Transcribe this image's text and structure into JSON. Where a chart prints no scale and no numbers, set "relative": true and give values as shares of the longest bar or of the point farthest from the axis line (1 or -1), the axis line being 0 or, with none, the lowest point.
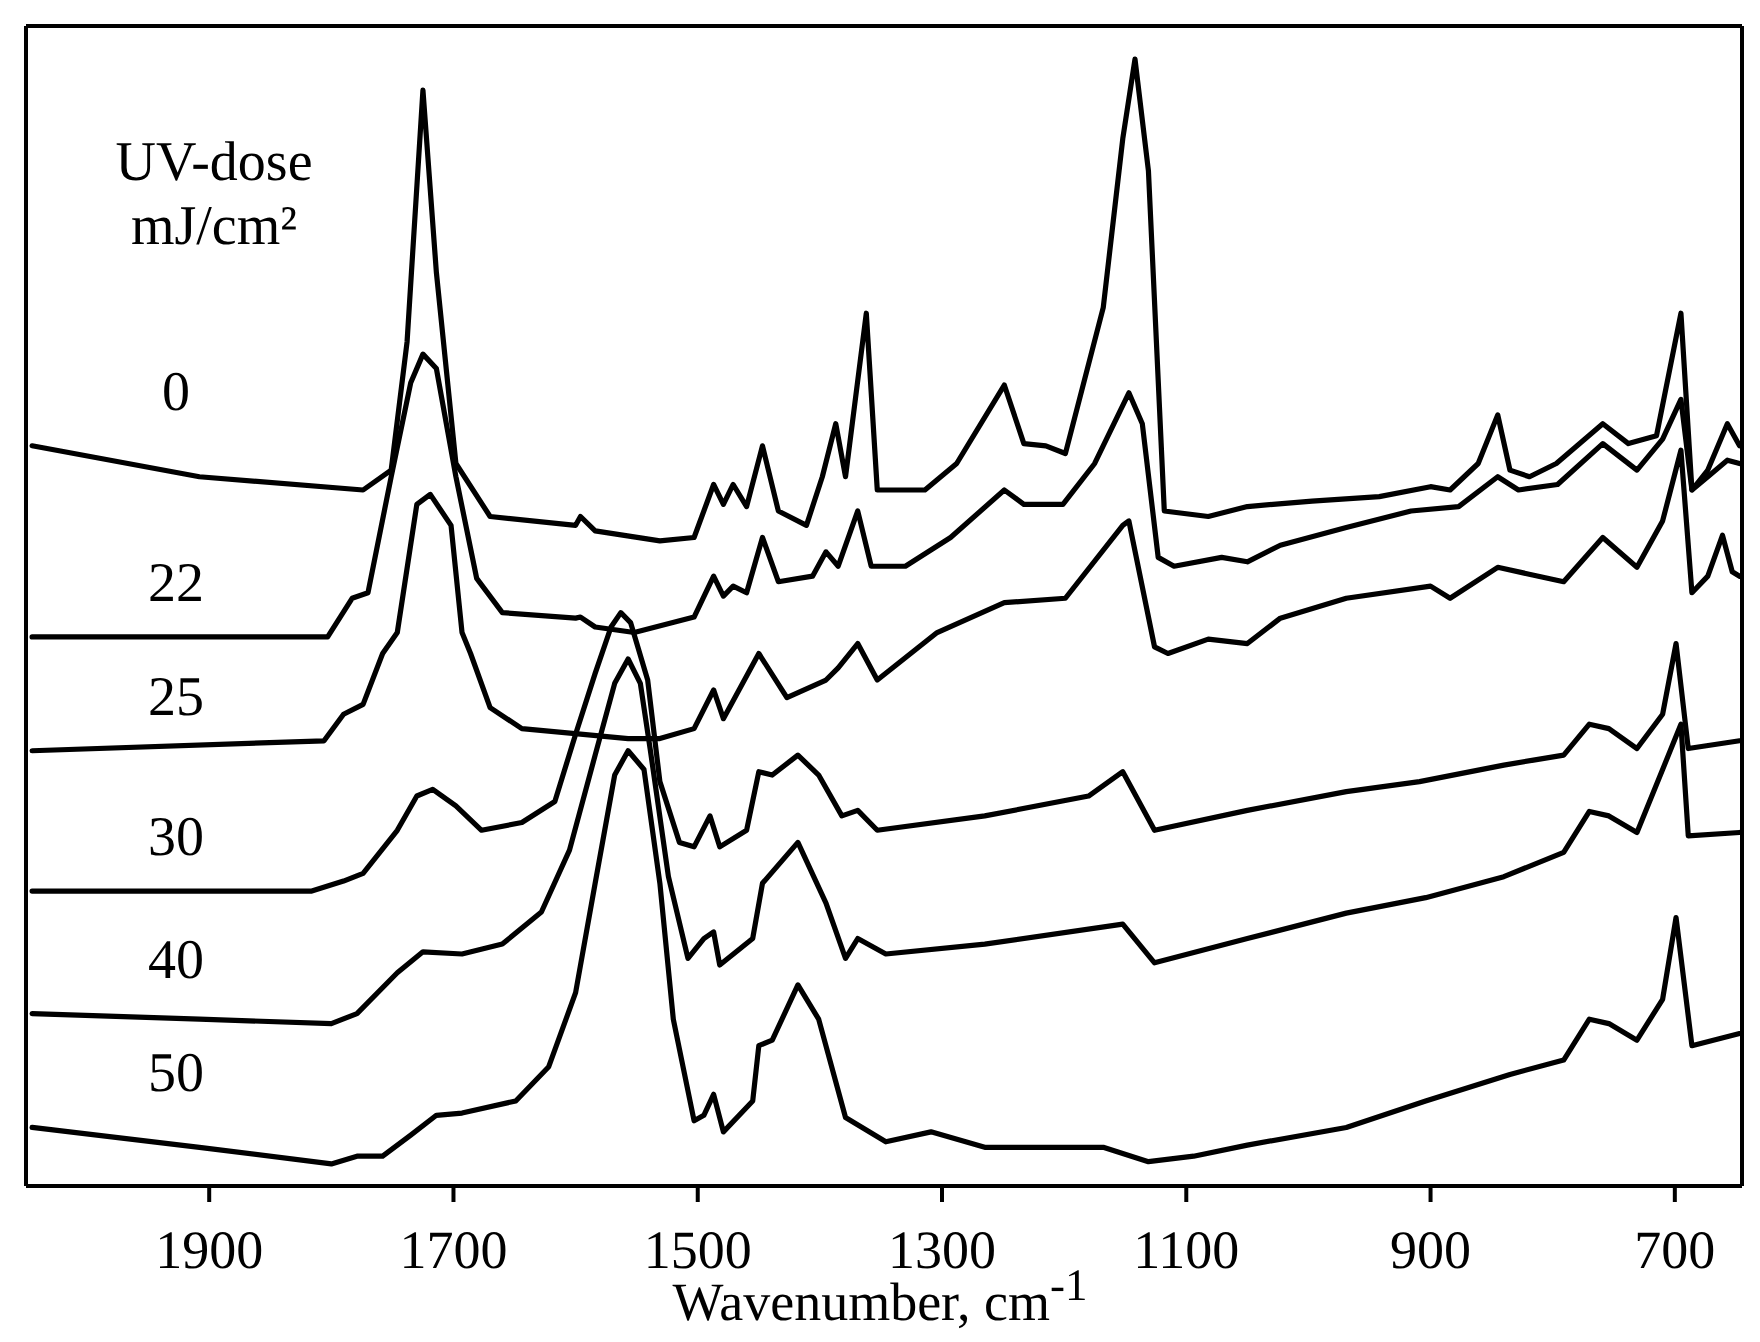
{
  "chart_data": {
    "type": "line",
    "relative": true,
    "xlabel": "Wavenumber, cm$^{-1}$",
    "legend_title": "UV-dose mJ/cm²",
    "legend": false,
    "marker": "none",
    "line_style": "solid",
    "xlim": [
      2050,
      645
    ],
    "xticks": [
      1900,
      1700,
      1500,
      1300,
      1100,
      900,
      700
    ],
    "series": [
      {
        "name": "0",
        "color": "#000000",
        "x": [
          2045,
          1908,
          1774,
          1751,
          1738,
          1725,
          1714,
          1698,
          1670,
          1600,
          1596,
          1584,
          1531,
          1503,
          1487,
          1479,
          1471,
          1460,
          1447,
          1434,
          1411,
          1398,
          1387,
          1379,
          1362,
          1353,
          1314,
          1288,
          1249,
          1233,
          1215,
          1199,
          1168,
          1152,
          1142,
          1131,
          1118,
          1082,
          1050,
          1029,
          997,
          942,
          900,
          884,
          861,
          845,
          835,
          819,
          797,
          759,
          738,
          715,
          695,
          686,
          673,
          657,
          647
        ],
        "values": [
          0.65,
          0.622,
          0.61,
          0.628,
          0.744,
          0.972,
          0.807,
          0.634,
          0.586,
          0.578,
          0.586,
          0.573,
          0.564,
          0.567,
          0.615,
          0.597,
          0.615,
          0.595,
          0.65,
          0.591,
          0.578,
          0.622,
          0.67,
          0.622,
          0.77,
          0.61,
          0.61,
          0.634,
          0.705,
          0.652,
          0.65,
          0.643,
          0.775,
          0.928,
          1.0,
          0.899,
          0.591,
          0.586,
          0.595,
          0.597,
          0.6,
          0.604,
          0.613,
          0.61,
          0.634,
          0.678,
          0.628,
          0.622,
          0.634,
          0.67,
          0.652,
          0.659,
          0.77,
          0.61,
          0.628,
          0.67,
          0.65
        ]
      },
      {
        "name": "22",
        "color": "#000000",
        "x": [
          2045,
          1803,
          1783,
          1770,
          1751,
          1735,
          1725,
          1714,
          1698,
          1681,
          1660,
          1600,
          1596,
          1584,
          1552,
          1503,
          1487,
          1479,
          1471,
          1460,
          1447,
          1434,
          1406,
          1395,
          1385,
          1369,
          1358,
          1330,
          1293,
          1249,
          1233,
          1201,
          1175,
          1147,
          1136,
          1123,
          1110,
          1071,
          1050,
          1023,
          969,
          916,
          877,
          845,
          828,
          796,
          759,
          731,
          710,
          695,
          686,
          673,
          657,
          647
        ],
        "values": [
          0.477,
          0.477,
          0.512,
          0.517,
          0.622,
          0.707,
          0.733,
          0.72,
          0.622,
          0.53,
          0.499,
          0.494,
          0.495,
          0.486,
          0.481,
          0.495,
          0.532,
          0.514,
          0.523,
          0.517,
          0.567,
          0.527,
          0.532,
          0.554,
          0.541,
          0.591,
          0.541,
          0.541,
          0.567,
          0.61,
          0.597,
          0.597,
          0.634,
          0.698,
          0.67,
          0.549,
          0.541,
          0.549,
          0.545,
          0.56,
          0.576,
          0.591,
          0.595,
          0.622,
          0.61,
          0.615,
          0.652,
          0.628,
          0.656,
          0.692,
          0.61,
          0.622,
          0.637,
          0.634
        ]
      },
      {
        "name": "25",
        "color": "#000000",
        "x": [
          2045,
          1806,
          1790,
          1774,
          1758,
          1746,
          1730,
          1719,
          1702,
          1693,
          1686,
          1670,
          1644,
          1596,
          1557,
          1531,
          1503,
          1487,
          1479,
          1450,
          1427,
          1395,
          1385,
          1369,
          1353,
          1304,
          1249,
          1199,
          1152,
          1147,
          1126,
          1115,
          1082,
          1050,
          1023,
          969,
          900,
          884,
          845,
          791,
          759,
          731,
          710,
          695,
          686,
          673,
          661,
          653,
          647
        ],
        "values": [
          0.374,
          0.383,
          0.407,
          0.416,
          0.462,
          0.481,
          0.597,
          0.606,
          0.578,
          0.481,
          0.462,
          0.413,
          0.394,
          0.389,
          0.385,
          0.385,
          0.394,
          0.429,
          0.403,
          0.462,
          0.422,
          0.438,
          0.449,
          0.471,
          0.438,
          0.481,
          0.508,
          0.512,
          0.578,
          0.582,
          0.468,
          0.462,
          0.475,
          0.471,
          0.494,
          0.512,
          0.523,
          0.512,
          0.54,
          0.527,
          0.567,
          0.54,
          0.582,
          0.646,
          0.517,
          0.532,
          0.569,
          0.536,
          0.532
        ]
      },
      {
        "name": "30",
        "color": "#000000",
        "x": [
          2045,
          1816,
          1790,
          1774,
          1746,
          1730,
          1717,
          1698,
          1677,
          1644,
          1617,
          1600,
          1584,
          1571,
          1563,
          1555,
          1541,
          1531,
          1515,
          1503,
          1490,
          1482,
          1460,
          1450,
          1439,
          1418,
          1401,
          1382,
          1369,
          1353,
          1265,
          1180,
          1152,
          1126,
          1050,
          969,
          909,
          840,
          791,
          770,
          754,
          731,
          710,
          699,
          689,
          647
        ],
        "values": [
          0.247,
          0.247,
          0.256,
          0.263,
          0.302,
          0.333,
          0.339,
          0.324,
          0.302,
          0.309,
          0.328,
          0.389,
          0.444,
          0.486,
          0.499,
          0.49,
          0.438,
          0.346,
          0.291,
          0.287,
          0.315,
          0.287,
          0.302,
          0.355,
          0.352,
          0.37,
          0.352,
          0.315,
          0.32,
          0.302,
          0.315,
          0.333,
          0.355,
          0.302,
          0.32,
          0.337,
          0.346,
          0.361,
          0.37,
          0.398,
          0.394,
          0.376,
          0.407,
          0.471,
          0.376,
          0.383
        ]
      },
      {
        "name": "40",
        "color": "#000000",
        "x": [
          2045,
          1908,
          1800,
          1779,
          1746,
          1725,
          1693,
          1660,
          1628,
          1605,
          1584,
          1568,
          1557,
          1547,
          1539,
          1524,
          1508,
          1495,
          1487,
          1482,
          1455,
          1447,
          1418,
          1395,
          1379,
          1369,
          1346,
          1265,
          1152,
          1126,
          1050,
          969,
          904,
          840,
          791,
          770,
          754,
          731,
          710,
          695,
          689,
          647
        ],
        "values": [
          0.136,
          0.131,
          0.127,
          0.136,
          0.173,
          0.192,
          0.19,
          0.199,
          0.228,
          0.284,
          0.37,
          0.435,
          0.457,
          0.435,
          0.376,
          0.26,
          0.186,
          0.204,
          0.21,
          0.18,
          0.204,
          0.254,
          0.291,
          0.236,
          0.186,
          0.204,
          0.19,
          0.199,
          0.217,
          0.182,
          0.204,
          0.227,
          0.241,
          0.26,
          0.282,
          0.319,
          0.315,
          0.3,
          0.357,
          0.398,
          0.297,
          0.3
        ]
      },
      {
        "name": "50",
        "color": "#000000",
        "x": [
          2045,
          1908,
          1800,
          1779,
          1758,
          1735,
          1714,
          1693,
          1649,
          1622,
          1600,
          1584,
          1568,
          1557,
          1544,
          1531,
          1520,
          1503,
          1495,
          1487,
          1479,
          1455,
          1450,
          1439,
          1418,
          1401,
          1379,
          1346,
          1309,
          1265,
          1168,
          1131,
          1094,
          1050,
          969,
          904,
          835,
          791,
          770,
          754,
          731,
          710,
          699,
          686,
          647
        ],
        "values": [
          0.033,
          0.015,
          0,
          0.007,
          0.007,
          0.026,
          0.044,
          0.046,
          0.057,
          0.088,
          0.155,
          0.254,
          0.352,
          0.374,
          0.357,
          0.254,
          0.131,
          0.039,
          0.044,
          0.063,
          0.029,
          0.057,
          0.107,
          0.112,
          0.162,
          0.131,
          0.042,
          0.02,
          0.029,
          0.015,
          0.015,
          0.002,
          0.007,
          0.017,
          0.033,
          0.057,
          0.081,
          0.094,
          0.131,
          0.127,
          0.112,
          0.149,
          0.223,
          0.107,
          0.118
        ]
      }
    ]
  }
}
